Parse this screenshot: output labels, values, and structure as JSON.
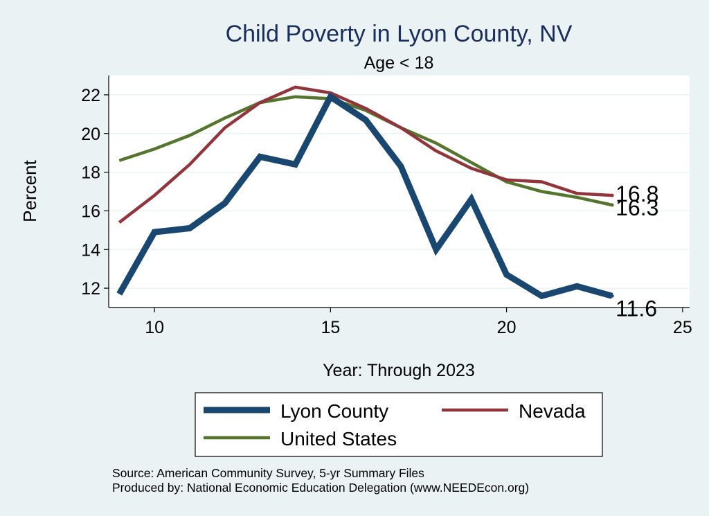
{
  "chart_data": {
    "type": "line",
    "title": "Child Poverty in Lyon County, NV",
    "subtitle": "Age < 18",
    "xlabel": "Year: Through 2023",
    "ylabel": "Percent",
    "xlim": [
      8.7,
      25.2
    ],
    "ylim": [
      11.0,
      23.0
    ],
    "xticks": [
      10,
      15,
      20,
      25
    ],
    "yticks": [
      12,
      14,
      16,
      18,
      20,
      22
    ],
    "grid": true,
    "legend_position": "bottom",
    "x": [
      9,
      10,
      11,
      12,
      13,
      14,
      15,
      16,
      17,
      18,
      19,
      20,
      21,
      22,
      23
    ],
    "series": [
      {
        "name": "Lyon County",
        "color": "#1a476f",
        "values": [
          11.7,
          14.9,
          15.1,
          16.4,
          18.8,
          18.4,
          21.9,
          20.7,
          18.3,
          14.0,
          16.6,
          12.7,
          11.6,
          12.1,
          11.6
        ],
        "end_label": "11.6"
      },
      {
        "name": "Nevada",
        "color": "#90353b",
        "values": [
          15.4,
          16.8,
          18.4,
          20.3,
          21.6,
          22.4,
          22.1,
          21.3,
          20.3,
          19.1,
          18.2,
          17.6,
          17.5,
          16.9,
          16.8
        ],
        "end_label": "16.8"
      },
      {
        "name": "United States",
        "color": "#55752f",
        "values": [
          18.6,
          19.2,
          19.9,
          20.8,
          21.6,
          21.9,
          21.8,
          21.2,
          20.3,
          19.5,
          18.5,
          17.5,
          17.0,
          16.7,
          16.3
        ],
        "end_label": "16.3"
      }
    ]
  },
  "footer": {
    "source": "Source: American Community Survey, 5-yr Summary Files",
    "produced_by": "Produced by: National Economic Education Delegation (www.NEEDEcon.org)"
  }
}
